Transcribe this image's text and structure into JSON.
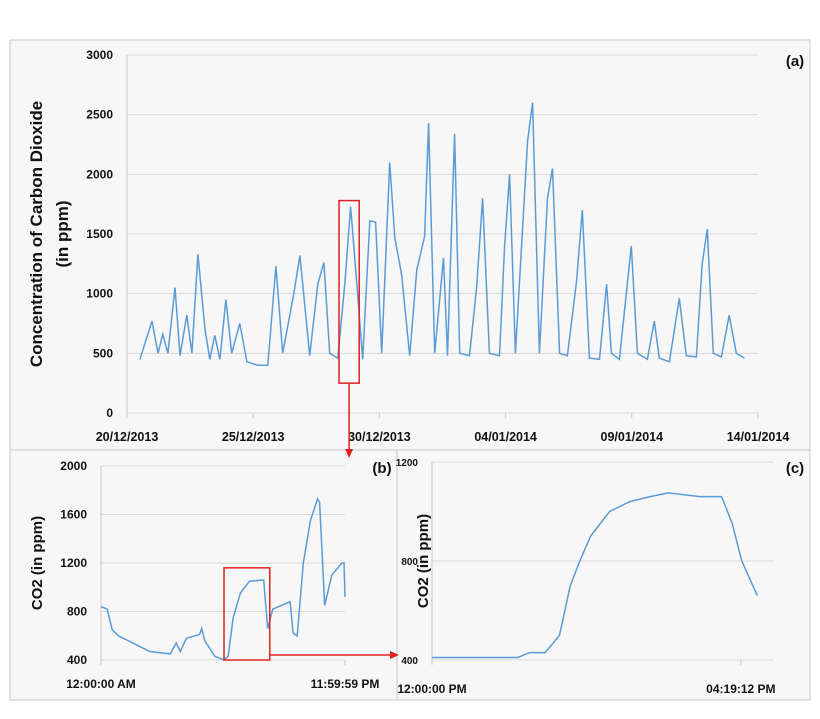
{
  "chart_data": [
    {
      "type": "line",
      "panel_label": "(a)",
      "ylabel": "Concentration of Carbon Dioxide",
      "ylabel2": "(in ppm)",
      "xlabel": "",
      "ylim": [
        0,
        3000
      ],
      "yticks": [
        0,
        500,
        1000,
        1500,
        2000,
        2500,
        3000
      ],
      "x_unit": "days since 20/12/2013",
      "xlim": [
        0,
        25
      ],
      "xticks": [
        {
          "v": 0,
          "label": "20/12/2013"
        },
        {
          "v": 5,
          "label": "25/12/2013"
        },
        {
          "v": 10,
          "label": "30/12/2013"
        },
        {
          "v": 15,
          "label": "04/01/2014"
        },
        {
          "v": 20,
          "label": "09/01/2014"
        },
        {
          "v": 25,
          "label": "14/01/2014"
        }
      ],
      "grid": true,
      "color": "#5b9bd5",
      "highlight": {
        "x": [
          8.4,
          9.2
        ],
        "y": [
          250,
          1780
        ],
        "color": "#e02020"
      },
      "series": [
        {
          "name": "CO2",
          "x": [
            0.51,
            0.99,
            1.23,
            1.42,
            1.62,
            1.9,
            2.1,
            2.37,
            2.57,
            2.81,
            3.09,
            3.28,
            3.48,
            3.68,
            3.92,
            4.15,
            4.47,
            4.75,
            5.18,
            5.58,
            5.9,
            6.17,
            6.61,
            6.85,
            7.24,
            7.56,
            7.8,
            8.03,
            8.35,
            8.63,
            8.86,
            9.06,
            9.34,
            9.62,
            9.85,
            10.09,
            10.41,
            10.61,
            10.88,
            11.2,
            11.48,
            11.79,
            11.95,
            12.19,
            12.54,
            12.7,
            12.98,
            13.18,
            13.57,
            13.85,
            14.09,
            14.36,
            14.76,
            14.96,
            15.16,
            15.39,
            15.87,
            16.07,
            16.34,
            16.66,
            16.86,
            17.14,
            17.45,
            17.81,
            18.04,
            18.32,
            18.72,
            19.0,
            19.19,
            19.51,
            19.98,
            20.22,
            20.62,
            20.89,
            21.09,
            21.49,
            21.88,
            22.16,
            22.56,
            22.79,
            22.99,
            23.23,
            23.55,
            23.86,
            24.14,
            24.46
          ],
          "y": [
            450,
            770,
            500,
            660,
            500,
            1050,
            480,
            820,
            500,
            1330,
            700,
            450,
            650,
            450,
            950,
            500,
            750,
            430,
            400,
            400,
            1230,
            500,
            1000,
            1320,
            480,
            1080,
            1260,
            500,
            460,
            1080,
            1730,
            1200,
            450,
            1610,
            1600,
            500,
            2100,
            1470,
            1160,
            480,
            1200,
            1480,
            2430,
            500,
            1300,
            480,
            2340,
            500,
            480,
            1050,
            1800,
            500,
            480,
            1400,
            2000,
            500,
            2280,
            2600,
            500,
            1800,
            2050,
            500,
            480,
            1100,
            1700,
            460,
            450,
            1080,
            500,
            450,
            1400,
            500,
            450,
            770,
            460,
            430,
            960,
            480,
            470,
            1250,
            1540,
            500,
            470,
            820,
            500,
            460
          ]
        }
      ]
    },
    {
      "type": "line",
      "panel_label": "(b)",
      "ylabel": "CO2 (in ppm)",
      "ylim": [
        400,
        2000
      ],
      "yticks": [
        400,
        800,
        1200,
        1600,
        2000
      ],
      "x_unit": "hours",
      "xlim": [
        0,
        24
      ],
      "xticks": [
        {
          "v": 0,
          "label": "12:00:00 AM"
        },
        {
          "v": 24,
          "label": "11:59:59 PM"
        }
      ],
      "grid": true,
      "color": "#5b9bd5",
      "highlight": {
        "x": [
          12.1,
          16.6
        ],
        "y": [
          400,
          1160
        ],
        "color": "#e02020"
      },
      "series": [
        {
          "name": "CO2",
          "x": [
            0,
            0.6,
            1.1,
            1.7,
            2.9,
            4.8,
            6.8,
            7.4,
            7.8,
            8.4,
            9.7,
            9.9,
            10.2,
            11.2,
            12.1,
            12.5,
            13,
            13.7,
            14.6,
            16,
            16.4,
            16.9,
            18.6,
            18.9,
            19.3,
            19.9,
            20.6,
            21.3,
            21.5,
            22,
            22.7,
            23.7,
            23.9,
            24
          ],
          "y": [
            840,
            820,
            650,
            600,
            550,
            470,
            450,
            540,
            470,
            580,
            610,
            660,
            560,
            430,
            400,
            430,
            750,
            950,
            1050,
            1060,
            660,
            820,
            880,
            620,
            600,
            1200,
            1550,
            1730,
            1700,
            850,
            1100,
            1200,
            1200,
            920
          ]
        }
      ]
    },
    {
      "type": "line",
      "panel_label": "(c)",
      "ylabel": "CO2 (in ppm)",
      "ylim": [
        400,
        1200
      ],
      "yticks": [
        400,
        800,
        1200
      ],
      "x_unit": "minutes since 12:00 PM",
      "xlim": [
        0,
        287
      ],
      "xticks": [
        {
          "v": 0,
          "label": "12:00:00 PM"
        },
        {
          "v": 259.2,
          "label": "04:19:12 PM"
        }
      ],
      "grid": true,
      "color": "#5b9bd5",
      "series": [
        {
          "name": "CO2",
          "x": [
            0,
            72,
            82,
            95,
            107,
            116,
            124,
            133,
            149,
            166,
            183,
            198,
            225,
            243,
            252,
            260,
            273
          ],
          "y": [
            410,
            410,
            430,
            430,
            500,
            700,
            800,
            900,
            1000,
            1040,
            1060,
            1075,
            1060,
            1060,
            950,
            800,
            660
          ]
        }
      ]
    }
  ]
}
